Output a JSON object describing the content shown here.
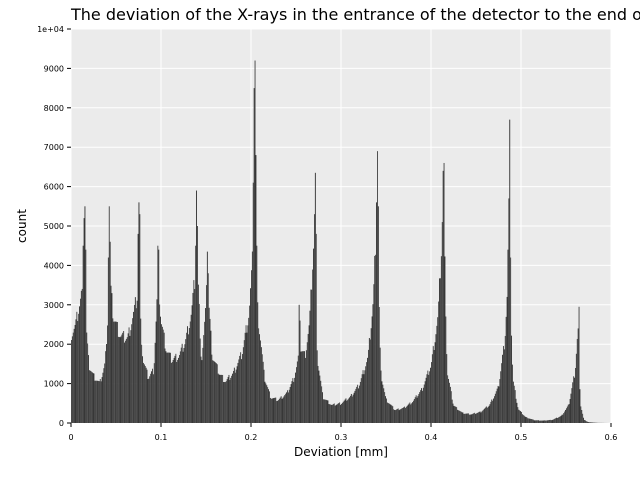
{
  "chart_data": {
    "type": "bar",
    "title": "The deviation of the X-rays in the entrance of the detector to the end of the detector",
    "xlabel": "Deviation [mm]",
    "ylabel": "count",
    "xlim": [
      0,
      0.6
    ],
    "ylim": [
      0,
      10000
    ],
    "x_ticks": [
      "0",
      "0.1",
      "0.2",
      "0.3",
      "0.4",
      "0.5",
      "0.6"
    ],
    "y_ticks": [
      "0",
      "1000",
      "2000",
      "3000",
      "4000",
      "5000",
      "6000",
      "7000",
      "8000",
      "9000",
      "1e+04"
    ],
    "grid": true,
    "background": "#ebebeb",
    "grid_color": "#ffffff",
    "bar_color": "#404040",
    "bin_width": 0.001,
    "baseline": [
      [
        0.0,
        2250
      ],
      [
        0.005,
        2450
      ],
      [
        0.012,
        3300
      ],
      [
        0.017,
        2400
      ],
      [
        0.02,
        1450
      ],
      [
        0.025,
        1200
      ],
      [
        0.032,
        1000
      ],
      [
        0.038,
        1500
      ],
      [
        0.043,
        3700
      ],
      [
        0.047,
        2700
      ],
      [
        0.055,
        2200
      ],
      [
        0.063,
        2150
      ],
      [
        0.07,
        2800
      ],
      [
        0.075,
        3400
      ],
      [
        0.08,
        1600
      ],
      [
        0.086,
        1150
      ],
      [
        0.092,
        1350
      ],
      [
        0.097,
        3800
      ],
      [
        0.1,
        2600
      ],
      [
        0.106,
        1850
      ],
      [
        0.112,
        1600
      ],
      [
        0.12,
        1700
      ],
      [
        0.127,
        2050
      ],
      [
        0.134,
        2800
      ],
      [
        0.14,
        4200
      ],
      [
        0.145,
        1500
      ],
      [
        0.152,
        3400
      ],
      [
        0.157,
        1700
      ],
      [
        0.165,
        1250
      ],
      [
        0.172,
        1050
      ],
      [
        0.18,
        1250
      ],
      [
        0.19,
        1750
      ],
      [
        0.198,
        2800
      ],
      [
        0.203,
        4600
      ],
      [
        0.208,
        2700
      ],
      [
        0.215,
        1150
      ],
      [
        0.222,
        650
      ],
      [
        0.23,
        580
      ],
      [
        0.24,
        750
      ],
      [
        0.248,
        1150
      ],
      [
        0.255,
        1900
      ],
      [
        0.26,
        1700
      ],
      [
        0.265,
        2500
      ],
      [
        0.27,
        4700
      ],
      [
        0.274,
        1600
      ],
      [
        0.28,
        650
      ],
      [
        0.29,
        450
      ],
      [
        0.3,
        500
      ],
      [
        0.31,
        650
      ],
      [
        0.32,
        950
      ],
      [
        0.33,
        1650
      ],
      [
        0.336,
        3100
      ],
      [
        0.34,
        5500
      ],
      [
        0.344,
        1300
      ],
      [
        0.35,
        600
      ],
      [
        0.36,
        330
      ],
      [
        0.37,
        380
      ],
      [
        0.38,
        550
      ],
      [
        0.39,
        850
      ],
      [
        0.4,
        1450
      ],
      [
        0.408,
        2700
      ],
      [
        0.414,
        5600
      ],
      [
        0.418,
        1300
      ],
      [
        0.425,
        450
      ],
      [
        0.435,
        250
      ],
      [
        0.445,
        220
      ],
      [
        0.455,
        280
      ],
      [
        0.465,
        450
      ],
      [
        0.475,
        900
      ],
      [
        0.482,
        2100
      ],
      [
        0.487,
        4300
      ],
      [
        0.491,
        1100
      ],
      [
        0.497,
        350
      ],
      [
        0.505,
        150
      ],
      [
        0.515,
        70
      ],
      [
        0.525,
        60
      ],
      [
        0.535,
        80
      ],
      [
        0.545,
        180
      ],
      [
        0.553,
        450
      ],
      [
        0.56,
        1300
      ],
      [
        0.563,
        2300
      ],
      [
        0.566,
        500
      ],
      [
        0.57,
        80
      ],
      [
        0.575,
        20
      ],
      [
        0.585,
        5
      ],
      [
        0.6,
        0
      ]
    ],
    "spikes": [
      [
        0.015,
        5500
      ],
      [
        0.014,
        5200
      ],
      [
        0.016,
        4400
      ],
      [
        0.013,
        4500
      ],
      [
        0.042,
        5500
      ],
      [
        0.043,
        4600
      ],
      [
        0.041,
        4200
      ],
      [
        0.075,
        5600
      ],
      [
        0.076,
        5300
      ],
      [
        0.074,
        4800
      ],
      [
        0.096,
        4500
      ],
      [
        0.097,
        4400
      ],
      [
        0.139,
        5900
      ],
      [
        0.14,
        5000
      ],
      [
        0.138,
        4500
      ],
      [
        0.151,
        4350
      ],
      [
        0.152,
        3800
      ],
      [
        0.15,
        3500
      ],
      [
        0.204,
        9200
      ],
      [
        0.203,
        8500
      ],
      [
        0.205,
        6800
      ],
      [
        0.202,
        6100
      ],
      [
        0.206,
        4500
      ],
      [
        0.253,
        3000
      ],
      [
        0.254,
        2600
      ],
      [
        0.271,
        6350
      ],
      [
        0.27,
        5300
      ],
      [
        0.272,
        4800
      ],
      [
        0.34,
        6900
      ],
      [
        0.339,
        5600
      ],
      [
        0.341,
        5500
      ],
      [
        0.414,
        6600
      ],
      [
        0.413,
        6400
      ],
      [
        0.412,
        5100
      ],
      [
        0.487,
        7700
      ],
      [
        0.486,
        5700
      ],
      [
        0.485,
        4400
      ],
      [
        0.488,
        4200
      ],
      [
        0.564,
        2950
      ],
      [
        0.563,
        2400
      ]
    ]
  }
}
